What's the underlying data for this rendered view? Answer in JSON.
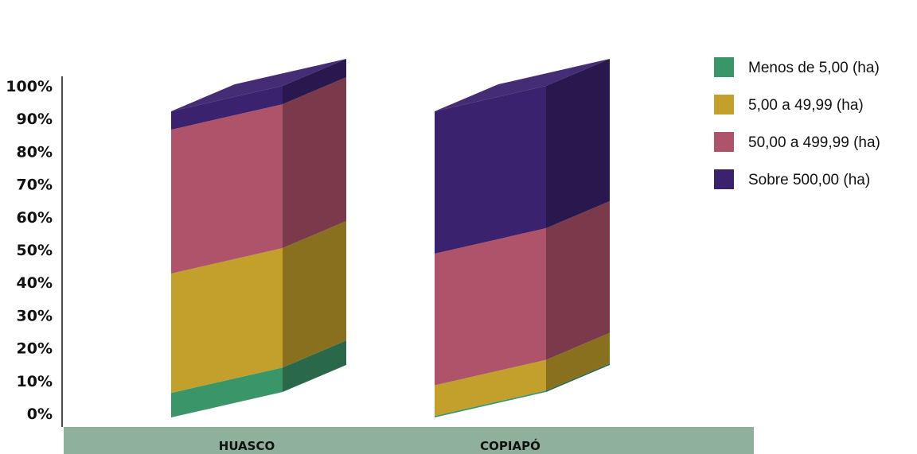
{
  "chart_data": {
    "type": "bar",
    "stacked": true,
    "three_d": true,
    "percent_stacked": true,
    "categories": [
      "HUASCO",
      "COPIAPÓ"
    ],
    "series": [
      {
        "name": "Menos de 5,00 (ha)",
        "color": "#3a9568",
        "values": [
          8,
          0.5
        ]
      },
      {
        "name": "5,00 a 49,99 (ha)",
        "color": "#c3a02c",
        "values": [
          39,
          10
        ]
      },
      {
        "name": "50,00 a 499,99 (ha)",
        "color": "#af536b",
        "values": [
          47,
          43
        ]
      },
      {
        "name": "Sobre 500,00 (ha)",
        "color": "#3b226e",
        "values": [
          6,
          46.5
        ]
      }
    ],
    "y_ticks": [
      "0%",
      "10%",
      "20%",
      "30%",
      "40%",
      "50%",
      "60%",
      "70%",
      "80%",
      "90%",
      "100%"
    ],
    "ylim": [
      0,
      100
    ],
    "legend_position": "right",
    "floor_color": "#8fb09b"
  }
}
